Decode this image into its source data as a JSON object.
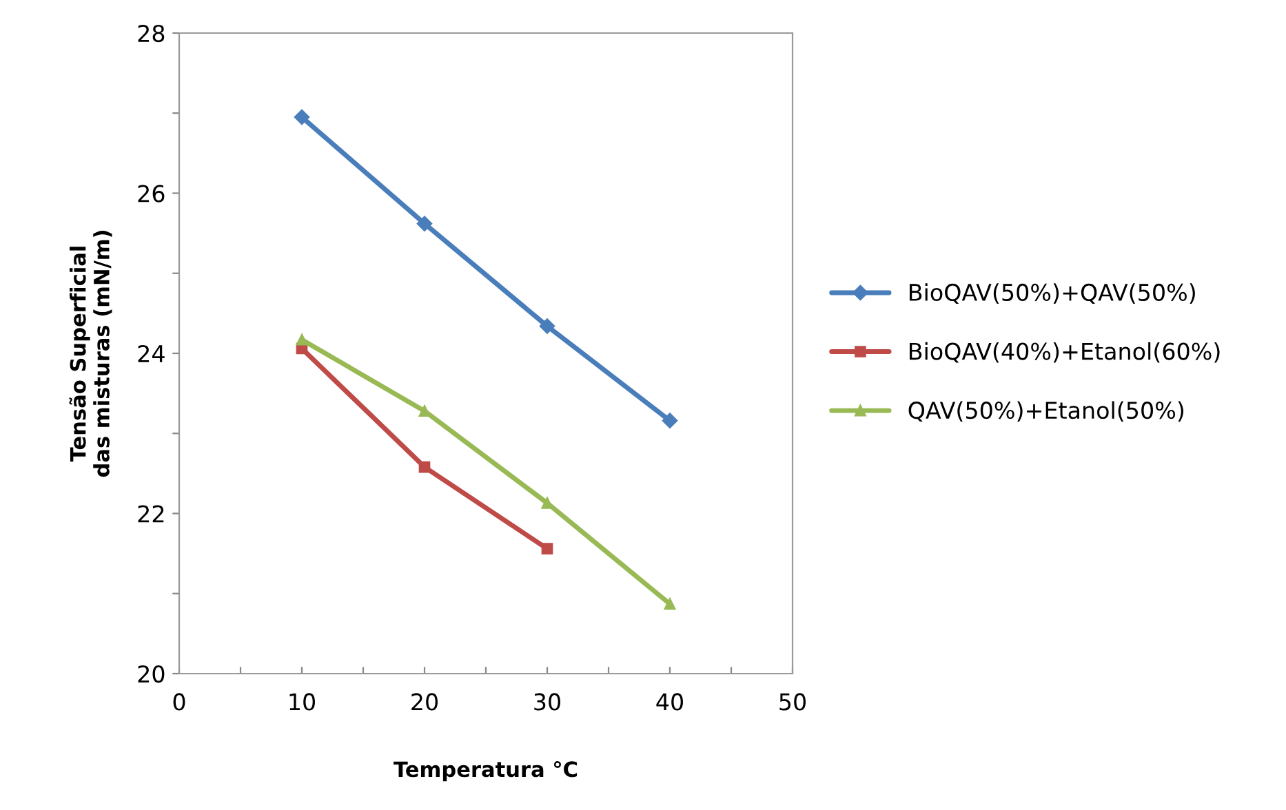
{
  "chart_data": {
    "type": "line",
    "xlabel": "Temperatura °C",
    "ylabel": "Tensão Superficial\ndas misturas (mN/m)",
    "x": [
      10,
      20,
      30,
      40
    ],
    "series": [
      {
        "name": "BioQAV(50%)+QAV(50%)",
        "color": "#4a7ebb",
        "marker": "diamond",
        "values": [
          26.95,
          25.62,
          24.34,
          23.16
        ]
      },
      {
        "name": "BioQAV(40%)+Etanol(60%)",
        "color": "#be4b48",
        "marker": "square",
        "values": [
          24.06,
          22.58,
          21.56,
          null
        ]
      },
      {
        "name": "QAV(50%)+Etanol(50%)",
        "color": "#98b954",
        "marker": "triangle",
        "values": [
          24.17,
          23.28,
          22.13,
          20.87
        ]
      }
    ],
    "xlim": [
      0,
      50
    ],
    "ylim": [
      20,
      28
    ],
    "xticks": [
      0,
      {
        "value": 5,
        "label": null
      },
      10,
      {
        "value": 15,
        "label": null
      },
      20,
      {
        "value": 25,
        "label": null
      },
      30,
      {
        "value": 35,
        "label": null
      },
      40,
      {
        "value": 45,
        "label": null
      },
      50
    ],
    "yticks": [
      20,
      {
        "value": 21,
        "label": null
      },
      22,
      {
        "value": 23,
        "label": null
      },
      24,
      {
        "value": 25,
        "label": null
      },
      26,
      {
        "value": 27,
        "label": null
      },
      28
    ],
    "grid": false,
    "legend": "right",
    "line_style": "solid"
  }
}
